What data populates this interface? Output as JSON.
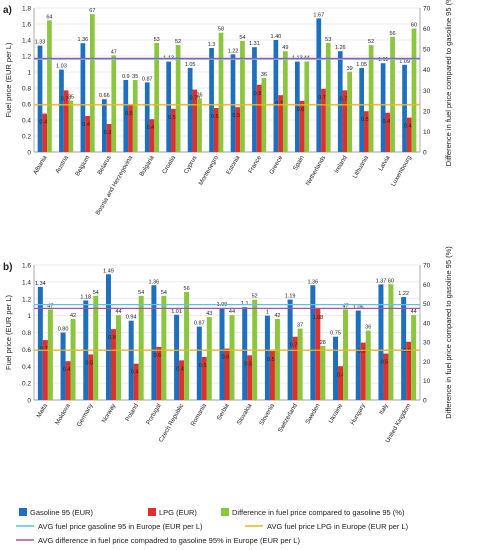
{
  "colors": {
    "gasoline": "#1f6fbf",
    "lpg": "#e0302a",
    "diff": "#8cc63f",
    "avg_gasoline_line": "#56c6e8",
    "avg_lpg_line": "#f2b51c",
    "avg_diff_line": "#b04fb6"
  },
  "legend": {
    "gasoline": "Gasoline 95 (EUR)",
    "lpg": "LPG (EUR)",
    "diff": "Difference in fuel price compared to gasoline 95 (%)",
    "avg_gasoline": "AVG fuel price gasoline 95 in Europe (EUR per L)",
    "avg_lpg": "AVG fuel price LPG in Europe (EUR per L)",
    "avg_diff": "AVG difference in fuel price compadred to gasoline 95% in Europe (EUR per L)"
  },
  "chart_data": [
    {
      "type": "bar",
      "panel_label": "a)",
      "ylabel": "Fuel price (EUR per L)",
      "y2label": "Difference in fuel price compared to gasoline 95 (%)",
      "ylim": [
        0,
        1.8
      ],
      "y2lim": [
        0,
        70
      ],
      "yticks": [
        "0",
        "0.2",
        "0.4",
        "0.6",
        "0.8",
        "1",
        "1.2",
        "1.4",
        "1.6",
        "1.8"
      ],
      "y2ticks": [
        "0",
        "10",
        "20",
        "30",
        "40",
        "50",
        "60",
        "70"
      ],
      "categories": [
        "Albania",
        "Austria",
        "Belgium",
        "Belarus",
        "Bosnia and Herzegovina",
        "Bulgaria",
        "Croatia",
        "Cyprus",
        "Montenegro",
        "Estonia",
        "France",
        "Greece",
        "Spain",
        "Netherlands",
        "Ireland",
        "Lithuania",
        "Latvia",
        "Luxembourg"
      ],
      "series": [
        {
          "name": "Gasoline 95 (EUR)",
          "axis": "left",
          "values": [
            1.33,
            1.03,
            1.36,
            0.66,
            0.9,
            0.87,
            1.13,
            1.05,
            1.3,
            1.22,
            1.31,
            1.4,
            1.13,
            1.67,
            1.26,
            1.05,
            1.11,
            1.09
          ],
          "labels": [
            "1.33",
            "1.03",
            "1.36",
            "0.66",
            "0.9",
            "0.87",
            "1.13",
            "1.05",
            "1.3",
            "1.22",
            "1.31",
            "1.40",
            "1.13",
            "1.67",
            "1.26",
            "1.05",
            "1.11",
            "1.09"
          ]
        },
        {
          "name": "LPG (EUR)",
          "axis": "left",
          "values": [
            0.48,
            0.77,
            0.45,
            0.35,
            0.59,
            0.41,
            0.54,
            0.78,
            0.55,
            0.56,
            0.84,
            0.71,
            0.64,
            0.79,
            0.77,
            0.51,
            0.49,
            0.43
          ],
          "labels": [
            "0.48",
            "0.77",
            "0.45",
            "0.35",
            "0.59",
            "0.41",
            "0.54",
            "0.78",
            "0.55",
            "0.56",
            "0.84",
            "0.71",
            "0.64",
            "0.79",
            "0.77",
            "0.51",
            "0.49",
            "0.43"
          ]
        },
        {
          "name": "Difference in fuel price compared to gasoline 95 (%)",
          "axis": "right",
          "values": [
            64,
            25,
            67,
            47,
            35,
            53,
            52,
            26,
            58,
            54,
            36,
            49,
            44,
            53,
            39,
            52,
            56,
            60
          ],
          "labels": [
            "64",
            "25",
            "67",
            "47",
            "35",
            "53",
            "52",
            "26",
            "58",
            "54",
            "36",
            "49",
            "44",
            "53",
            "39",
            "52",
            "56",
            "60"
          ]
        }
      ],
      "avg_lines": {
        "gasoline": 1.16,
        "lpg": 0.59,
        "diff": 45.5
      }
    },
    {
      "type": "bar",
      "panel_label": "b)",
      "ylabel": "Fuel price (EUR per L)",
      "y2label": "Difference in fuel price compared to gasoline 95 (%)",
      "ylim": [
        0,
        1.6
      ],
      "y2lim": [
        0,
        70
      ],
      "yticks": [
        "0",
        "0.2",
        "0.4",
        "0.6",
        "0.8",
        "1",
        "1.2",
        "1.4",
        "1.6"
      ],
      "y2ticks": [
        "0",
        "10",
        "20",
        "30",
        "40",
        "50",
        "60",
        "70"
      ],
      "categories": [
        "Malta",
        "Moldova",
        "Germany",
        "Norway",
        "Poland",
        "Portugal",
        "Czech Republic",
        "Romania",
        "Serbia",
        "Slovakia",
        "Slovenia",
        "Switzerland",
        "Sweden",
        "Ukraine",
        "Hungary",
        "Italy",
        "United Kingdom"
      ],
      "series": [
        {
          "name": "Gasoline 95 (EUR)",
          "axis": "left",
          "values": [
            1.34,
            0.8,
            1.18,
            1.49,
            0.94,
            1.36,
            1.01,
            0.87,
            1.09,
            1.1,
            1.0,
            1.19,
            1.36,
            0.75,
            1.06,
            1.37,
            1.22
          ],
          "labels": [
            "1.34",
            "0.80",
            "1.18",
            "1.49",
            "0.94",
            "1.36",
            "1.01",
            "0.87",
            "1.09",
            "1.1",
            "1",
            "1.19",
            "1.36",
            "0.75",
            "1.06",
            "1.37",
            "1.22"
          ]
        },
        {
          "name": "LPG (EUR)",
          "axis": "left",
          "values": [
            0.71,
            0.46,
            0.54,
            0.84,
            0.43,
            0.63,
            0.47,
            0.51,
            0.61,
            0.53,
            0.58,
            0.75,
            1.08,
            0.4,
            0.68,
            0.55,
            0.69
          ],
          "labels": [
            "0.71",
            "0.46",
            "0.54",
            "0.84",
            "0.43",
            "0.63",
            "0.47",
            "0.51",
            "0.61",
            "0.53",
            "0.58",
            "0.75",
            "1.08",
            "0.4",
            "0.68",
            "0.55",
            "0.69"
          ]
        },
        {
          "name": "Difference in fuel price compared to gasoline 95 (%)",
          "axis": "right",
          "values": [
            47,
            42,
            54,
            44,
            54,
            54,
            56,
            43,
            44,
            52,
            42,
            37,
            28,
            47,
            36,
            60,
            44
          ],
          "labels": [
            "47",
            "42",
            "54",
            "44",
            "54",
            "54",
            "56",
            "43",
            "44",
            "52",
            "42",
            "37",
            "28",
            "47",
            "36",
            "60",
            "44"
          ]
        }
      ],
      "avg_lines": {
        "gasoline": 1.13,
        "lpg": 0.59,
        "diff": 47.5
      }
    }
  ]
}
